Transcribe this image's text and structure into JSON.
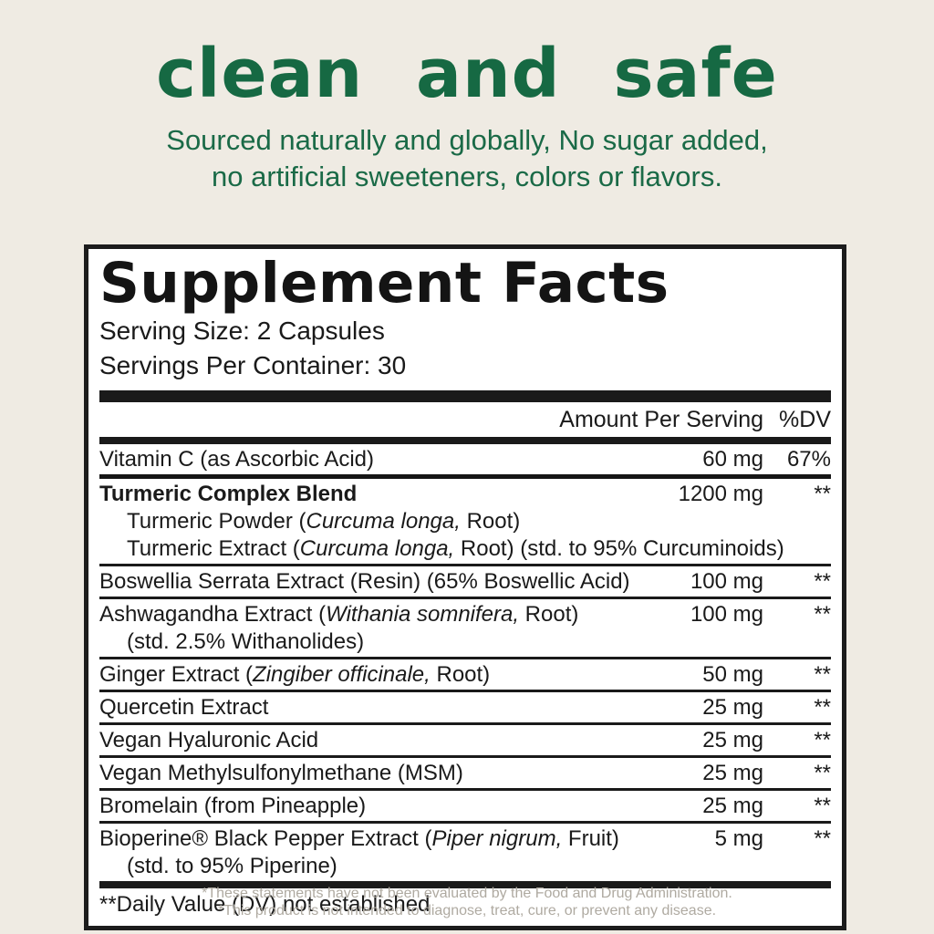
{
  "colors": {
    "background": "#EFEBE3",
    "accent_green": "#166943",
    "panel_background": "#FFFFFF",
    "rule_black": "#1A1A1A",
    "footer_gray": "#AFAAA1"
  },
  "hero": {
    "title": "clean and safe",
    "subtitle_line1": "Sourced naturally and globally, No sugar added,",
    "subtitle_line2": "no artificial sweeteners, colors or flavors."
  },
  "panel": {
    "title": "Supplement Facts",
    "serving_size": "Serving Size: 2 Capsules",
    "servings_per_container": "Servings Per Container: 30",
    "col_amount": "Amount Per Serving",
    "col_dv": "%DV",
    "rows": [
      {
        "name_pre": "Vitamin C (as Ascorbic Acid)",
        "name_italic": "",
        "name_post": "",
        "amount": "60 mg",
        "dv": "67%"
      },
      {
        "name_pre": "Turmeric Complex Blend",
        "name_italic": "",
        "name_post": "",
        "amount": "1200 mg",
        "dv": "**",
        "subs": [
          {
            "pre": "Turmeric Powder (",
            "italic": "Curcuma longa,",
            "post": " Root)"
          },
          {
            "pre": "Turmeric Extract (",
            "italic": "Curcuma longa,",
            "post": " Root) (std. to 95% Curcuminoids)"
          }
        ]
      },
      {
        "name_pre": "Boswellia Serrata Extract (Resin) (65% Boswellic Acid)",
        "name_italic": "",
        "name_post": "",
        "amount": "100 mg",
        "dv": "**"
      },
      {
        "name_pre": "Ashwagandha Extract (",
        "name_italic": "Withania somnifera,",
        "name_post": " Root)",
        "amount": "100 mg",
        "dv": "**",
        "subs": [
          {
            "pre": "(std. 2.5% Withanolides)",
            "italic": "",
            "post": ""
          }
        ]
      },
      {
        "name_pre": "Ginger Extract (",
        "name_italic": "Zingiber officinale,",
        "name_post": " Root)",
        "amount": "50 mg",
        "dv": "**"
      },
      {
        "name_pre": "Quercetin Extract",
        "name_italic": "",
        "name_post": "",
        "amount": "25 mg",
        "dv": "**"
      },
      {
        "name_pre": "Vegan Hyaluronic Acid",
        "name_italic": "",
        "name_post": "",
        "amount": "25 mg",
        "dv": "**"
      },
      {
        "name_pre": "Vegan Methylsulfonylmethane (MSM)",
        "name_italic": "",
        "name_post": "",
        "amount": "25 mg",
        "dv": "**"
      },
      {
        "name_pre": "Bromelain (from Pineapple)",
        "name_italic": "",
        "name_post": "",
        "amount": "25 mg",
        "dv": "**"
      },
      {
        "name_pre": "Bioperine® Black Pepper Extract (",
        "name_italic": "Piper nigrum,",
        "name_post": " Fruit)",
        "amount": "5 mg",
        "dv": "**",
        "subs": [
          {
            "pre": "(std. to 95% Piperine)",
            "italic": "",
            "post": ""
          }
        ]
      }
    ],
    "footnote": "**Daily Value (DV) not established"
  },
  "footer": {
    "line1": "*These statements have not been evaluated by the Food and Drug Administration.",
    "line2": "*This product is not intended to diagnose, treat, cure, or prevent any disease."
  }
}
